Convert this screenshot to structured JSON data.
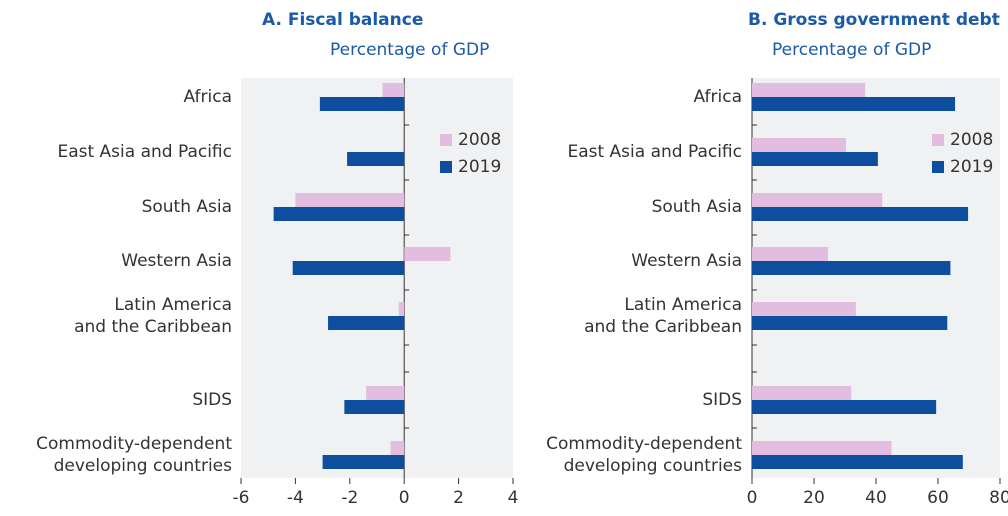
{
  "chart_data": [
    {
      "type": "bar",
      "orientation": "horizontal",
      "title": "A. Fiscal balance",
      "subtitle": "Percentage of GDP",
      "categories": [
        "Africa",
        "East Asia and Pacific",
        "South Asia",
        "Western Asia",
        "Latin America\nand the Caribbean",
        "SIDS",
        "Commodity-dependent\ndeveloping countries"
      ],
      "series": [
        {
          "name": "2008",
          "color": "#e3bde0",
          "values": [
            -0.8,
            null,
            -4.0,
            1.7,
            -0.2,
            -1.4,
            -0.5
          ]
        },
        {
          "name": "2019",
          "color": "#0d4f9e",
          "values": [
            -3.1,
            -2.1,
            -4.8,
            -4.1,
            -2.8,
            -2.2,
            -3.0
          ]
        }
      ],
      "xlim": [
        -6,
        4
      ],
      "xticks": [
        -6,
        -4,
        -2,
        0,
        2,
        4
      ],
      "legend": "upper right"
    },
    {
      "type": "bar",
      "orientation": "horizontal",
      "title": "B. Gross government debt",
      "subtitle": "Percentage of GDP",
      "categories": [
        "Africa",
        "East Asia and Pacific",
        "South Asia",
        "Western Asia",
        "Latin America\nand the Caribbean",
        "SIDS",
        "Commodity-dependent\ndeveloping countries"
      ],
      "series": [
        {
          "name": "2008",
          "color": "#e3bde0",
          "values": [
            36.5,
            30.3,
            42,
            24.5,
            33.5,
            32,
            45
          ]
        },
        {
          "name": "2019",
          "color": "#0d4f9e",
          "values": [
            65.5,
            40.6,
            69.7,
            64,
            63,
            59.4,
            68
          ]
        }
      ],
      "xlim": [
        0,
        80
      ],
      "xticks": [
        0,
        20,
        40,
        60,
        80
      ],
      "legend": "upper right"
    }
  ]
}
